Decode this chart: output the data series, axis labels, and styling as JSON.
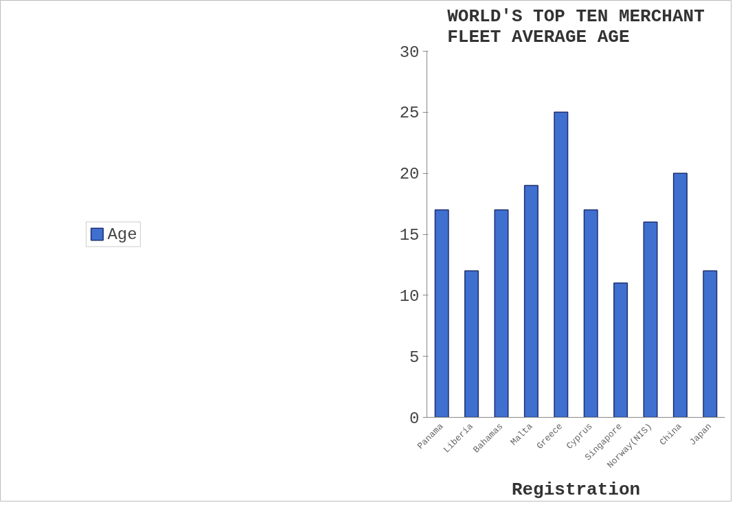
{
  "chart_data": {
    "type": "bar",
    "title": "WORLD'S TOP TEN MERCHANT FLEET AVERAGE AGE",
    "xlabel": "Registration",
    "categories": [
      "Panama",
      "Liberia",
      "Bahamas",
      "Malta",
      "Greece",
      "Cyprus",
      "Singapore",
      "Norway(NIS)",
      "China",
      "Japan"
    ],
    "series": [
      {
        "name": "Age",
        "color": "#3f6fcf",
        "values": [
          17,
          12,
          17,
          19,
          25,
          17,
          11,
          16,
          20,
          12
        ]
      }
    ],
    "ylim": [
      0,
      30
    ],
    "yticks": [
      0,
      5,
      10,
      15,
      20,
      25,
      30
    ],
    "grid": false,
    "legend": "left"
  }
}
